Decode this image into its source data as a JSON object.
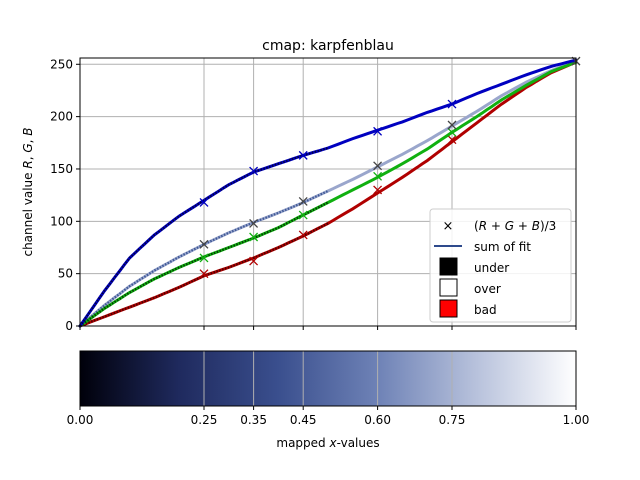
{
  "colors": {
    "red": "#b00000",
    "red_dark": "#3a0000",
    "green": "#10b010",
    "green_dark": "#002a00",
    "blue": "#0000c0",
    "blue_dark": "#000030",
    "sum": "#2e4a8c",
    "grid": "#b0b0b0",
    "bad": "#ff0000"
  },
  "chart_data": [
    {
      "type": "line",
      "title": "cmap: karpfenblau",
      "ylabel": "channel value R, G, B",
      "ylabel_parts": {
        "pre": "channel value ",
        "r": "R",
        "sep1": ", ",
        "g": "G",
        "sep2": ", ",
        "b": "B"
      },
      "xlim": [
        0,
        1
      ],
      "ylim": [
        0,
        256
      ],
      "yticks": [
        0,
        50,
        100,
        150,
        200,
        250
      ],
      "xgrid": [
        0.0,
        0.25,
        0.35,
        0.45,
        0.6,
        0.75,
        1.0
      ],
      "grid": true,
      "x": [
        0.0,
        0.05,
        0.1,
        0.15,
        0.2,
        0.25,
        0.3,
        0.35,
        0.4,
        0.45,
        0.5,
        0.55,
        0.6,
        0.65,
        0.7,
        0.75,
        0.8,
        0.85,
        0.9,
        0.95,
        1.0
      ],
      "series": [
        {
          "name": "R",
          "values": [
            0,
            9,
            18,
            27,
            37,
            48,
            56,
            65,
            75,
            86,
            98,
            112,
            127,
            142,
            158,
            176,
            194,
            212,
            228,
            242,
            252
          ]
        },
        {
          "name": "G",
          "values": [
            0,
            17,
            32,
            45,
            56,
            66,
            75,
            84,
            94,
            106,
            118,
            130,
            142,
            155,
            169,
            185,
            200,
            216,
            230,
            243,
            252
          ]
        },
        {
          "name": "B",
          "values": [
            0,
            34,
            65,
            87,
            105,
            120,
            135,
            147,
            155,
            163,
            170,
            179,
            187,
            195,
            204,
            212,
            222,
            231,
            240,
            248,
            254
          ]
        },
        {
          "name": "mean",
          "values": [
            0,
            20,
            38,
            53,
            66,
            78,
            89,
            99,
            108,
            118,
            129,
            140,
            152,
            164,
            177,
            191,
            205,
            220,
            233,
            244,
            253
          ]
        }
      ],
      "markers": {
        "x": [
          0.25,
          0.35,
          0.45,
          0.6,
          0.75
        ],
        "R": [
          50,
          62,
          87,
          130,
          178
        ],
        "G": [
          65,
          85,
          106,
          143,
          185
        ],
        "B": [
          118,
          148,
          163,
          186,
          212
        ],
        "mean": [
          78,
          98,
          119,
          153,
          192
        ]
      },
      "legend": {
        "position": "lower right",
        "entries": [
          {
            "label_pre": "(",
            "R": "R",
            "p1": " + ",
            "G": "G",
            "p2": " + ",
            "B": "B",
            "label_post": ")/3"
          },
          {
            "label": "sum of fit"
          },
          {
            "label": "under"
          },
          {
            "label": "over"
          },
          {
            "label": "bad"
          }
        ]
      }
    },
    {
      "type": "colorbar",
      "xlabel_pre": "mapped ",
      "xlabel_var": "x",
      "xlabel_post": "-values",
      "xticks": [
        0.0,
        0.25,
        0.35,
        0.45,
        0.6,
        0.75,
        1.0
      ],
      "xticklabels": [
        "0.00",
        "0.25",
        "0.35",
        "0.45",
        "0.60",
        "0.75",
        "1.00"
      ],
      "gradient": [
        "#00000a",
        "#1f2a5e",
        "#3a4f8e",
        "#6e82b6",
        "#b8c2dc",
        "#ffffff"
      ]
    }
  ]
}
